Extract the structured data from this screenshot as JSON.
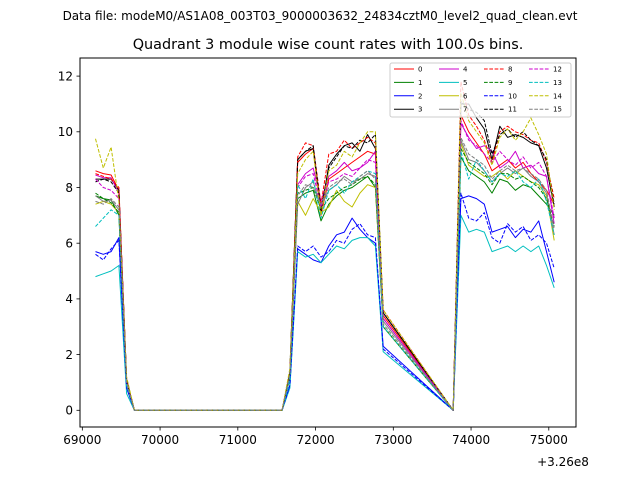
{
  "figure": {
    "suptitle": "Data file: modeM0/AS1A08_003T03_9000003632_24834cztM0_level2_quad_clean.evt",
    "offset_text": "+3.26e8"
  },
  "chart_data": {
    "type": "line",
    "title": "Quadrant 3 module wise count rates with 100.0s bins.",
    "xlabel": "",
    "ylabel": "",
    "xlim": [
      68970,
      75350
    ],
    "ylim": [
      -0.6,
      12.65
    ],
    "x_ticks": [
      69000,
      70000,
      71000,
      72000,
      73000,
      74000,
      75000
    ],
    "x_tick_labels": [
      "69000",
      "70000",
      "71000",
      "72000",
      "73000",
      "74000",
      "75000"
    ],
    "y_ticks": [
      0,
      2,
      4,
      6,
      8,
      10,
      12
    ],
    "y_tick_labels": [
      "0",
      "2",
      "4",
      "6",
      "8",
      "10",
      "12"
    ],
    "grid": false,
    "legend_location": "upper-right",
    "legend_columns": 4,
    "segments": [
      {
        "start": 69170,
        "count": 9
      },
      {
        "start": 71570,
        "count": 14
      },
      {
        "start": 73770,
        "count": 14
      }
    ],
    "series": [
      {
        "name": "0",
        "color": "#ff0000",
        "dash": "solid",
        "values": [
          8.6,
          8.5,
          8.45,
          7.9,
          1.1,
          0,
          0,
          0,
          0,
          0,
          1.3,
          8.9,
          9.2,
          9.4,
          7.0,
          8.3,
          8.5,
          8.7,
          8.9,
          9.1,
          9.3,
          9.2,
          3.4,
          0,
          10.6,
          10.0,
          9.6,
          9.2,
          8.6,
          8.8,
          9.0,
          8.7,
          8.9,
          8.5,
          8.2,
          7.9,
          7.4
        ]
      },
      {
        "name": "1",
        "color": "#008000",
        "dash": "solid",
        "values": [
          7.7,
          7.6,
          7.55,
          7.0,
          1.0,
          0,
          0,
          0,
          0,
          0,
          1.2,
          7.6,
          7.8,
          7.9,
          6.8,
          7.4,
          7.7,
          7.9,
          8.0,
          8.2,
          8.4,
          8.0,
          3.0,
          0,
          9.1,
          8.6,
          8.4,
          8.2,
          7.8,
          8.3,
          8.2,
          7.9,
          8.1,
          8.0,
          7.7,
          7.4,
          7.0
        ]
      },
      {
        "name": "2",
        "color": "#0000ff",
        "dash": "solid",
        "values": [
          5.7,
          5.6,
          5.7,
          6.2,
          0.8,
          0,
          0,
          0,
          0,
          0,
          0.9,
          5.8,
          5.6,
          5.4,
          5.3,
          5.9,
          6.3,
          6.4,
          6.9,
          6.5,
          6.2,
          6.0,
          2.3,
          0,
          7.6,
          7.7,
          7.6,
          7.4,
          6.4,
          6.5,
          6.6,
          6.2,
          6.5,
          6.4,
          6.8,
          5.7,
          4.6
        ]
      },
      {
        "name": "3",
        "color": "#000000",
        "dash": "solid",
        "values": [
          8.3,
          8.3,
          8.3,
          7.9,
          1.1,
          0,
          0,
          0,
          0,
          0,
          1.4,
          9.0,
          9.3,
          9.4,
          7.1,
          8.8,
          9.2,
          9.5,
          9.6,
          9.3,
          9.9,
          9.4,
          3.5,
          0,
          11.0,
          11.0,
          10.5,
          10.1,
          9.0,
          10.2,
          9.8,
          9.9,
          9.8,
          9.6,
          9.5,
          8.7,
          7.3
        ]
      },
      {
        "name": "4",
        "color": "#cc00cc",
        "dash": "solid",
        "values": [
          8.45,
          8.35,
          8.35,
          7.8,
          1.0,
          0,
          0,
          0,
          0,
          0,
          1.3,
          8.1,
          8.5,
          8.7,
          7.5,
          8.4,
          8.6,
          8.9,
          8.6,
          8.7,
          8.9,
          9.3,
          3.3,
          0,
          10.3,
          9.8,
          9.4,
          9.5,
          9.3,
          8.7,
          8.9,
          9.3,
          8.7,
          8.8,
          8.5,
          8.4,
          6.7
        ]
      },
      {
        "name": "5",
        "color": "#00bfbf",
        "dash": "solid",
        "values": [
          4.8,
          4.9,
          5.0,
          5.2,
          0.6,
          0,
          0,
          0,
          0,
          0,
          0.8,
          5.7,
          5.5,
          5.6,
          5.3,
          5.6,
          5.9,
          5.8,
          6.1,
          6.2,
          6.2,
          5.9,
          2.1,
          0,
          7.0,
          6.4,
          6.5,
          6.4,
          5.7,
          5.8,
          5.9,
          5.7,
          5.9,
          5.7,
          5.9,
          5.2,
          4.4
        ]
      },
      {
        "name": "6",
        "color": "#bfbf00",
        "dash": "solid",
        "values": [
          7.4,
          7.5,
          7.4,
          7.1,
          1.0,
          0,
          0,
          0,
          0,
          0,
          1.3,
          7.5,
          7.0,
          7.6,
          7.1,
          7.3,
          7.9,
          7.5,
          7.3,
          7.8,
          8.1,
          8.0,
          3.0,
          0,
          9.6,
          8.8,
          8.6,
          8.4,
          8.4,
          8.6,
          8.3,
          8.6,
          8.4,
          8.2,
          8.1,
          7.7,
          6.1
        ]
      },
      {
        "name": "7",
        "color": "#7f7f7f",
        "dash": "solid",
        "values": [
          7.7,
          7.5,
          7.55,
          7.2,
          1.0,
          0,
          0,
          0,
          0,
          0,
          1.3,
          7.4,
          8.0,
          8.2,
          7.3,
          7.9,
          8.1,
          8.4,
          8.2,
          8.3,
          8.5,
          8.4,
          3.2,
          0,
          9.7,
          9.0,
          8.9,
          8.6,
          8.2,
          8.5,
          8.7,
          8.5,
          8.7,
          8.4,
          8.2,
          7.8,
          6.3
        ]
      },
      {
        "name": "8",
        "color": "#ff0000",
        "dash": "dashed",
        "values": [
          8.5,
          8.4,
          8.3,
          8.0,
          1.1,
          0,
          0,
          0,
          0,
          0,
          1.3,
          9.1,
          9.6,
          9.5,
          7.4,
          9.2,
          9.3,
          9.7,
          9.4,
          9.6,
          9.8,
          9.6,
          3.6,
          0,
          11.8,
          10.6,
          10.2,
          9.7,
          8.9,
          10.0,
          10.2,
          10.0,
          9.9,
          9.7,
          9.6,
          8.9,
          7.6
        ]
      },
      {
        "name": "9",
        "color": "#008000",
        "dash": "dashed",
        "values": [
          7.8,
          7.6,
          7.45,
          7.1,
          1.0,
          0,
          0,
          0,
          0,
          0,
          1.2,
          7.8,
          7.9,
          8.0,
          7.2,
          7.6,
          7.8,
          8.0,
          8.1,
          8.3,
          8.4,
          8.1,
          3.0,
          0,
          9.4,
          8.9,
          8.7,
          8.5,
          8.1,
          8.5,
          8.5,
          8.3,
          8.4,
          8.2,
          8.0,
          7.6,
          6.6
        ]
      },
      {
        "name": "10",
        "color": "#0000ff",
        "dash": "dashed",
        "values": [
          5.6,
          5.4,
          5.8,
          6.1,
          0.8,
          0,
          0,
          0,
          0,
          0,
          0.9,
          5.9,
          5.7,
          5.9,
          5.5,
          5.7,
          6.1,
          6.0,
          6.5,
          6.7,
          6.3,
          6.2,
          2.2,
          0,
          7.8,
          6.9,
          6.8,
          7.1,
          6.2,
          6.0,
          6.7,
          6.4,
          6.6,
          6.1,
          6.3,
          6.0,
          5.1
        ]
      },
      {
        "name": "11",
        "color": "#000000",
        "dash": "dashed",
        "values": [
          8.2,
          8.3,
          8.2,
          7.8,
          1.1,
          0,
          0,
          0,
          0,
          0,
          1.4,
          9.0,
          9.3,
          9.5,
          7.2,
          8.7,
          9.1,
          9.5,
          9.4,
          9.7,
          9.6,
          9.9,
          3.5,
          0,
          11.1,
          10.8,
          10.7,
          10.4,
          9.2,
          9.9,
          10.1,
          9.8,
          10.0,
          9.7,
          9.5,
          9.0,
          7.4
        ]
      },
      {
        "name": "12",
        "color": "#cc00cc",
        "dash": "dashed",
        "values": [
          8.3,
          8.0,
          7.9,
          7.6,
          1.0,
          0,
          0,
          0,
          0,
          0,
          1.3,
          8.0,
          8.4,
          8.5,
          7.3,
          8.2,
          8.3,
          8.5,
          8.4,
          8.7,
          9.0,
          8.9,
          3.3,
          0,
          10.4,
          9.7,
          9.5,
          9.2,
          8.9,
          9.3,
          9.0,
          8.8,
          9.1,
          8.7,
          8.9,
          8.4,
          6.9
        ]
      },
      {
        "name": "13",
        "color": "#00bfbf",
        "dash": "dashed",
        "values": [
          6.6,
          6.9,
          7.2,
          7.0,
          0.9,
          0,
          0,
          0,
          0,
          0,
          1.1,
          8.1,
          7.6,
          8.3,
          6.9,
          7.9,
          8.1,
          7.8,
          8.2,
          8.4,
          8.6,
          8.5,
          3.0,
          0,
          9.3,
          8.3,
          9.0,
          8.6,
          8.2,
          8.5,
          8.4,
          8.6,
          8.2,
          8.0,
          8.3,
          7.5,
          6.3
        ]
      },
      {
        "name": "14",
        "color": "#bfbf00",
        "dash": "dashed",
        "values": [
          9.75,
          8.7,
          9.45,
          7.5,
          1.2,
          0,
          0,
          0,
          0,
          0,
          1.5,
          8.5,
          9.0,
          9.3,
          7.0,
          8.6,
          8.8,
          9.3,
          9.1,
          9.6,
          10.0,
          10.0,
          3.6,
          0,
          11.4,
          10.4,
          10.0,
          9.6,
          8.8,
          9.8,
          10.1,
          9.7,
          10.0,
          10.5,
          9.9,
          9.2,
          7.2
        ]
      },
      {
        "name": "15",
        "color": "#7f7f7f",
        "dash": "dashed",
        "values": [
          7.5,
          7.4,
          7.6,
          7.3,
          1.0,
          0,
          0,
          0,
          0,
          0,
          1.3,
          7.7,
          8.1,
          8.0,
          7.4,
          8.0,
          8.2,
          8.3,
          8.1,
          8.4,
          8.6,
          8.3,
          3.1,
          0,
          9.8,
          9.2,
          9.0,
          8.8,
          8.3,
          8.6,
          8.8,
          8.6,
          8.7,
          8.5,
          8.3,
          7.9,
          6.5
        ]
      }
    ]
  }
}
